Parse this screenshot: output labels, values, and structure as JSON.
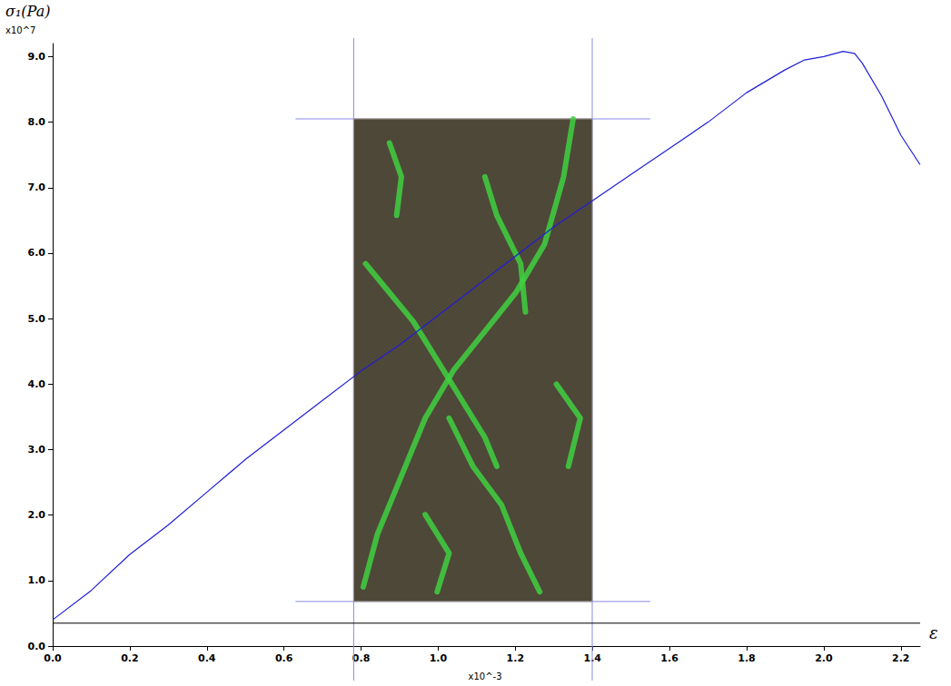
{
  "chart_data": {
    "type": "line",
    "y_label": "σ₁(Pa)",
    "x_label": "ε",
    "y_multiplier": "x10^7",
    "x_multiplier": "x10^-3",
    "xlim": [
      0,
      2.25
    ],
    "xticks": [
      {
        "value": 0,
        "label": "0.0"
      },
      0.2,
      0.4,
      0.6,
      0.8,
      {
        "value": 1,
        "label": "1.0"
      },
      1.2,
      1.4,
      1.6,
      1.8,
      {
        "value": 2,
        "label": "2.0"
      },
      2.2
    ],
    "ylim": [
      0,
      9.2
    ],
    "yticks": [
      {
        "value": 0,
        "label": "0.0"
      },
      {
        "value": 1,
        "label": "1.0"
      },
      {
        "value": 2,
        "label": "2.0"
      },
      {
        "value": 3,
        "label": "3.0"
      },
      {
        "value": 4,
        "label": "4.0"
      },
      {
        "value": 5,
        "label": "5.0"
      },
      {
        "value": 6,
        "label": "6.0"
      },
      {
        "value": 7,
        "label": "7.0"
      },
      {
        "value": 8,
        "label": "8.0"
      },
      {
        "value": 9,
        "label": "9.0"
      }
    ],
    "grid": false,
    "series": [
      {
        "color": "#1f1fd6",
        "x": [
          0,
          0.1,
          0.2,
          0.3,
          0.4,
          0.5,
          0.6,
          0.7,
          0.8,
          0.9,
          1.0,
          1.1,
          1.2,
          1.3,
          1.4,
          1.5,
          1.6,
          1.7,
          1.8,
          1.9,
          1.95,
          2.0,
          2.05,
          2.08,
          2.1,
          2.15,
          2.2,
          2.25
        ],
        "values": [
          0.4,
          0.85,
          1.4,
          1.85,
          2.35,
          2.85,
          3.3,
          3.75,
          4.2,
          4.6,
          5.05,
          5.5,
          5.95,
          6.4,
          6.8,
          7.2,
          7.6,
          8.0,
          8.45,
          8.8,
          8.95,
          9.0,
          9.08,
          9.05,
          8.9,
          8.4,
          7.8,
          7.35
        ]
      },
      {
        "color": "#000000",
        "x": [
          0,
          2.25
        ],
        "values": [
          0.35,
          0.35
        ]
      }
    ]
  }
}
